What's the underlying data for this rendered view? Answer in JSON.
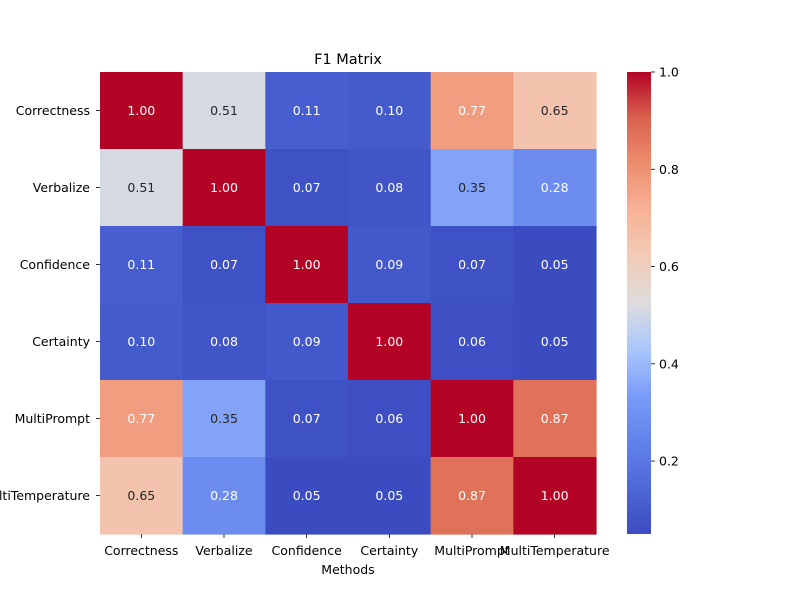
{
  "chart_data": {
    "type": "heatmap",
    "title": "F1 Matrix",
    "xlabel": "Methods",
    "ylabel": "",
    "x_categories": [
      "Correctness",
      "Verbalize",
      "Confidence",
      "Certainty",
      "MultiPrompt",
      "MultiTemperature"
    ],
    "y_categories": [
      "Correctness",
      "Verbalize",
      "Confidence",
      "Certainty",
      "MultiPrompt",
      "MultiTemperature"
    ],
    "values": [
      [
        1.0,
        0.51,
        0.11,
        0.1,
        0.77,
        0.65
      ],
      [
        0.51,
        1.0,
        0.07,
        0.08,
        0.35,
        0.28
      ],
      [
        0.11,
        0.07,
        1.0,
        0.09,
        0.07,
        0.05
      ],
      [
        0.1,
        0.08,
        0.09,
        1.0,
        0.06,
        0.05
      ],
      [
        0.77,
        0.35,
        0.07,
        0.06,
        1.0,
        0.87
      ],
      [
        0.65,
        0.28,
        0.05,
        0.05,
        0.87,
        1.0
      ]
    ],
    "value_format": "2 decimals",
    "colormap": "coolwarm",
    "color_range": [
      0.05,
      1.0
    ],
    "colorbar_ticks": [
      0.2,
      0.4,
      0.6,
      0.8,
      1.0
    ],
    "colorbar_tick_labels": [
      "0.2",
      "0.4",
      "0.6",
      "0.8",
      "1.0"
    ],
    "annotation_colors": {
      "light": "#ffffff",
      "dark": "#262626"
    }
  }
}
